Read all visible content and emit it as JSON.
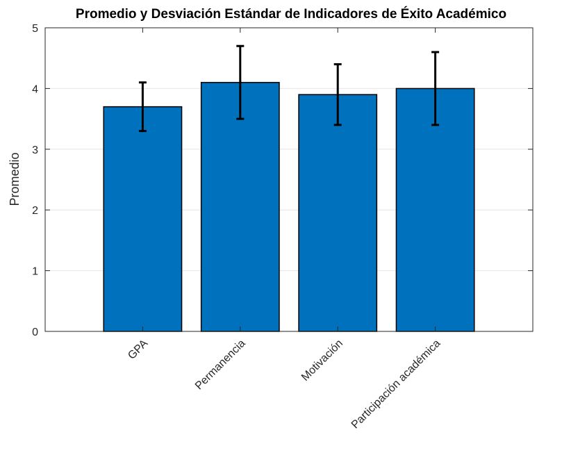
{
  "chart_data": {
    "type": "bar",
    "title": "Promedio y Desviación Estándar de Indicadores de Éxito Académico",
    "xlabel": "",
    "ylabel": "Promedio",
    "categories": [
      "GPA",
      "Permanencia",
      "Motivación",
      "Participación académica"
    ],
    "values": [
      3.7,
      4.1,
      3.9,
      4.0
    ],
    "error": [
      0.4,
      0.6,
      0.5,
      0.6
    ],
    "ylim": [
      0,
      5
    ],
    "yticks": [
      0,
      1,
      2,
      3,
      4,
      5
    ],
    "grid": true,
    "bar_color": "#0072BD",
    "error_bar_color": "#000000"
  }
}
